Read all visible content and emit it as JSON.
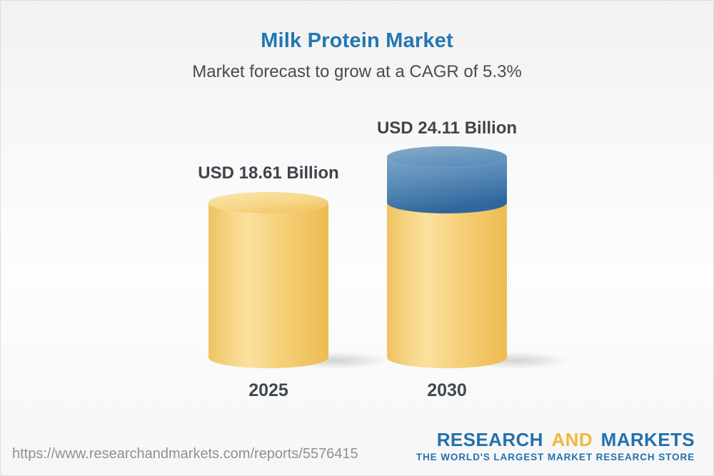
{
  "page": {
    "title": "Milk Protein Market",
    "subtitle": "Market forecast to grow at a CAGR of 5.3%"
  },
  "chart_data": {
    "type": "bar",
    "variant": "3d-cylinder",
    "title": "Milk Protein Market",
    "subtitle": "Market forecast to grow at a CAGR of 5.3%",
    "categories": [
      "2025",
      "2030"
    ],
    "values": [
      18.61,
      24.11
    ],
    "value_labels": [
      "USD 18.61 Billion",
      "USD 24.11 Billion"
    ],
    "unit": "USD Billion",
    "cagr_percent": 5.3,
    "legend": "none",
    "grid": "off",
    "colors": {
      "base_segment": "#F3C763",
      "growth_segment": "#4579A9",
      "title_text": "#2277AF",
      "label_text": "#3F444B"
    }
  },
  "footer": {
    "url": "https://www.researchandmarkets.com/reports/5576415",
    "logo": {
      "part1": "RESEARCH",
      "part2": "AND",
      "part3": "MARKETS",
      "tagline": "THE WORLD'S LARGEST MARKET RESEARCH STORE",
      "blue": "#2471AC",
      "gold": "#F0B83C"
    }
  }
}
